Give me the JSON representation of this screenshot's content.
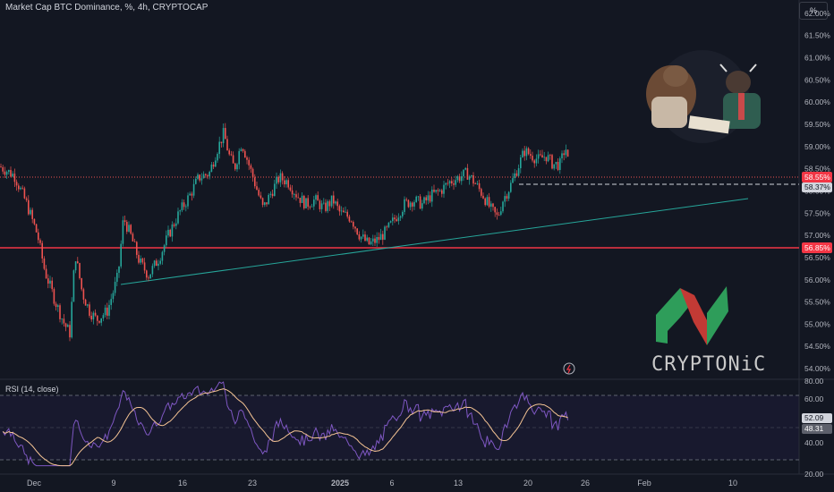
{
  "header": {
    "title": "Market Cap BTC Dominance, %, 4h, CRYPTOCAP",
    "unit_button": "%"
  },
  "rsi": {
    "title": "RSI (14, close)",
    "axis_labels": [
      "80.00",
      "60.00",
      "40.00",
      "20.00"
    ],
    "current_values": [
      "52.09",
      "48.31"
    ]
  },
  "brand": {
    "name": "CRYPTONiC"
  },
  "colors": {
    "background": "#131722",
    "up": "#26a69a",
    "down": "#ef5350",
    "resistance": "#f23645",
    "trendline": "#26a69a",
    "rsi_line": "#7e57c2",
    "rsi_ma": "#f5c494"
  },
  "chart_data": {
    "type": "candlestick",
    "symbol": "Market Cap BTC Dominance",
    "interval": "4h",
    "ylim": [
      53.8,
      62.3
    ],
    "y_ticks": [
      "62.00%",
      "61.50%",
      "61.00%",
      "60.50%",
      "60.00%",
      "59.50%",
      "59.00%",
      "58.50%",
      "58.00%",
      "57.50%",
      "57.00%",
      "56.50%",
      "56.00%",
      "55.50%",
      "55.00%",
      "54.50%",
      "54.00%"
    ],
    "x_ticks": [
      "Dec",
      "9",
      "16",
      "23",
      "2025",
      "6",
      "13",
      "20",
      "26",
      "Feb",
      "10"
    ],
    "price_path": [
      [
        0,
        58.55
      ],
      [
        16,
        58.35
      ],
      [
        30,
        57.7
      ],
      [
        42,
        57.0
      ],
      [
        50,
        56.2
      ],
      [
        62,
        55.5
      ],
      [
        72,
        55.0
      ],
      [
        78,
        54.8
      ],
      [
        84,
        56.6
      ],
      [
        92,
        55.7
      ],
      [
        100,
        55.3
      ],
      [
        108,
        55.1
      ],
      [
        120,
        55.3
      ],
      [
        132,
        56.1
      ],
      [
        138,
        57.4
      ],
      [
        146,
        57.0
      ],
      [
        156,
        56.4
      ],
      [
        166,
        56.1
      ],
      [
        178,
        56.5
      ],
      [
        188,
        57.0
      ],
      [
        200,
        57.5
      ],
      [
        212,
        57.9
      ],
      [
        222,
        58.3
      ],
      [
        234,
        58.4
      ],
      [
        242,
        58.9
      ],
      [
        250,
        59.3
      ],
      [
        256,
        58.8
      ],
      [
        262,
        58.5
      ],
      [
        270,
        59.1
      ],
      [
        278,
        58.6
      ],
      [
        286,
        58.1
      ],
      [
        294,
        57.6
      ],
      [
        304,
        58.0
      ],
      [
        312,
        58.3
      ],
      [
        322,
        58.2
      ],
      [
        332,
        57.9
      ],
      [
        342,
        57.7
      ],
      [
        352,
        57.8
      ],
      [
        362,
        57.6
      ],
      [
        372,
        57.8
      ],
      [
        380,
        57.5
      ],
      [
        392,
        57.4
      ],
      [
        402,
        57.0
      ],
      [
        412,
        56.8
      ],
      [
        422,
        56.9
      ],
      [
        432,
        57.1
      ],
      [
        442,
        57.4
      ],
      [
        452,
        57.7
      ],
      [
        462,
        57.8
      ],
      [
        472,
        57.7
      ],
      [
        482,
        57.9
      ],
      [
        492,
        58.0
      ],
      [
        502,
        58.2
      ],
      [
        512,
        58.3
      ],
      [
        522,
        58.4
      ],
      [
        530,
        58.2
      ],
      [
        540,
        57.9
      ],
      [
        548,
        57.6
      ],
      [
        556,
        57.4
      ],
      [
        562,
        57.8
      ],
      [
        570,
        58.1
      ],
      [
        578,
        58.5
      ],
      [
        586,
        58.9
      ],
      [
        594,
        58.8
      ],
      [
        602,
        58.7
      ],
      [
        610,
        58.8
      ],
      [
        618,
        58.6
      ],
      [
        626,
        58.6
      ],
      [
        632,
        59.0
      ],
      [
        636,
        58.5
      ]
    ],
    "markers": {
      "last_price": "58.55%",
      "dashed_level": "58.37%",
      "support_level": "56.85%"
    }
  }
}
